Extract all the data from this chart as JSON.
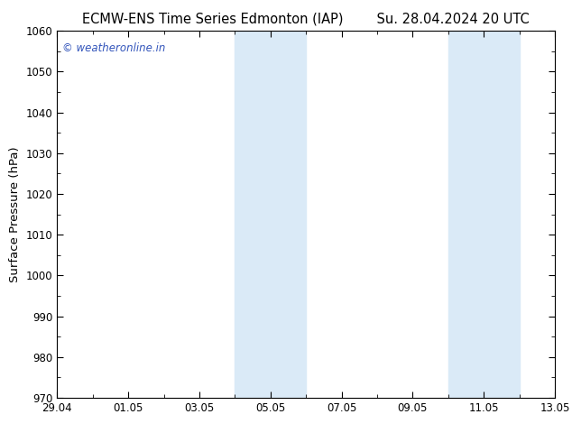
{
  "title_left": "ECMW-ENS Time Series Edmonton (IAP)",
  "title_right": "Su. 28.04.2024 20 UTC",
  "ylabel": "Surface Pressure (hPa)",
  "ylim": [
    970,
    1060
  ],
  "yticks": [
    970,
    980,
    990,
    1000,
    1010,
    1020,
    1030,
    1040,
    1050,
    1060
  ],
  "xlim_start": 0,
  "xlim_end": 14,
  "xtick_labels": [
    "29.04",
    "01.05",
    "03.05",
    "05.05",
    "07.05",
    "09.05",
    "11.05",
    "13.05"
  ],
  "xtick_positions": [
    0,
    2,
    4,
    6,
    8,
    10,
    12,
    14
  ],
  "shaded_bands": [
    {
      "x_start": 5.0,
      "x_end": 7.0
    },
    {
      "x_start": 11.0,
      "x_end": 13.0
    }
  ],
  "shade_color": "#daeaf7",
  "watermark_text": "© weatheronline.in",
  "watermark_color": "#3355bb",
  "background_color": "#ffffff",
  "plot_bg_color": "#ffffff",
  "title_fontsize": 10.5,
  "axis_label_fontsize": 9.5,
  "tick_fontsize": 8.5
}
